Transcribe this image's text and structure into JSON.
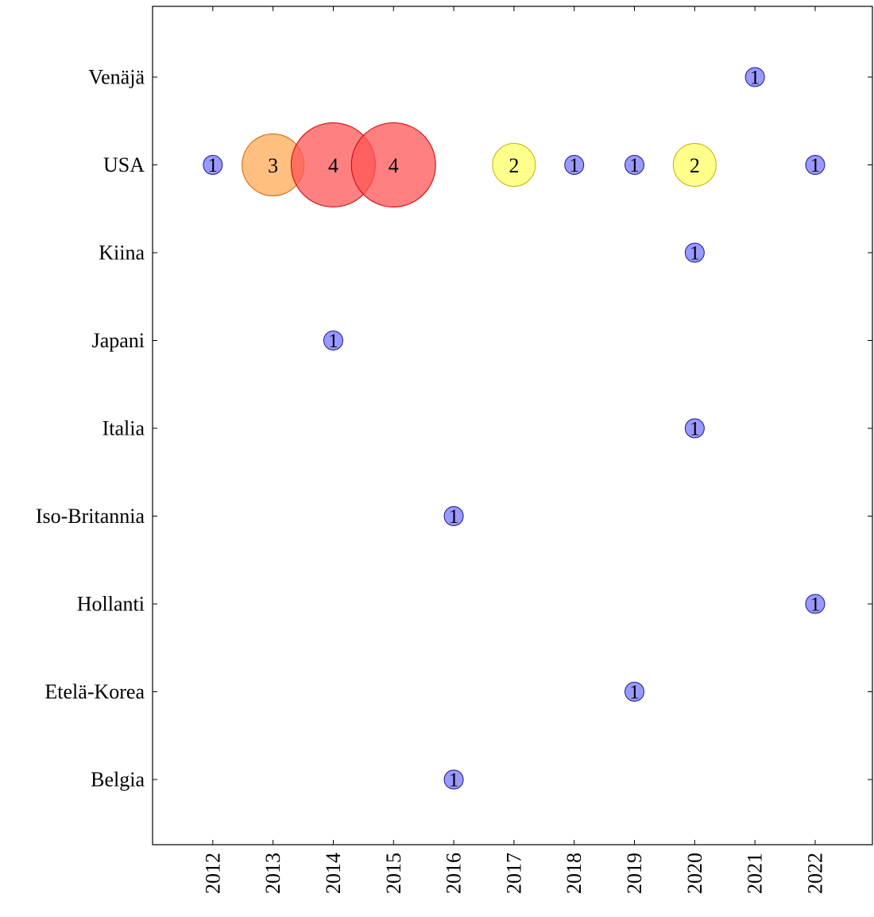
{
  "chart_data": {
    "type": "scatter",
    "title": "",
    "xlabel": "",
    "ylabel": "",
    "x_ticks": [
      2012,
      2013,
      2014,
      2015,
      2016,
      2017,
      2018,
      2019,
      2020,
      2021,
      2022
    ],
    "x_tick_labels": [
      "2012",
      "2013",
      "2014",
      "2015",
      "2016",
      "2017",
      "2018",
      "2019",
      "2020",
      "2021",
      "2022"
    ],
    "xlim": [
      2011.0,
      2022.95
    ],
    "categories": [
      "Belgia",
      "Etelä-Korea",
      "Hollanti",
      "Iso-Britannia",
      "Italia",
      "Japani",
      "Kiina",
      "USA",
      "Venäjä"
    ],
    "grid": false,
    "legend": "none",
    "color_by_count": {
      "1": "#7777ff",
      "2": "#ffff66",
      "3": "#ffaa55",
      "4": "#ff5555"
    },
    "outline_by_count": {
      "1": "#1a1a8c",
      "2": "#b8b800",
      "3": "#cc6600",
      "4": "#cc0000"
    },
    "points": [
      {
        "x": 2021,
        "y": "Venäjä",
        "count": 1,
        "label": "1"
      },
      {
        "x": 2012,
        "y": "USA",
        "count": 1,
        "label": "1"
      },
      {
        "x": 2013,
        "y": "USA",
        "count": 3,
        "label": "3"
      },
      {
        "x": 2014,
        "y": "USA",
        "count": 4,
        "label": "4"
      },
      {
        "x": 2015,
        "y": "USA",
        "count": 4,
        "label": "4"
      },
      {
        "x": 2017,
        "y": "USA",
        "count": 2,
        "label": "2"
      },
      {
        "x": 2018,
        "y": "USA",
        "count": 1,
        "label": "1"
      },
      {
        "x": 2019,
        "y": "USA",
        "count": 1,
        "label": "1"
      },
      {
        "x": 2020,
        "y": "USA",
        "count": 2,
        "label": "2"
      },
      {
        "x": 2022,
        "y": "USA",
        "count": 1,
        "label": "1"
      },
      {
        "x": 2020,
        "y": "Kiina",
        "count": 1,
        "label": "1"
      },
      {
        "x": 2014,
        "y": "Japani",
        "count": 1,
        "label": "1"
      },
      {
        "x": 2020,
        "y": "Italia",
        "count": 1,
        "label": "1"
      },
      {
        "x": 2016,
        "y": "Iso-Britannia",
        "count": 1,
        "label": "1"
      },
      {
        "x": 2022,
        "y": "Hollanti",
        "count": 1,
        "label": "1"
      },
      {
        "x": 2019,
        "y": "Etelä-Korea",
        "count": 1,
        "label": "1"
      },
      {
        "x": 2016,
        "y": "Belgia",
        "count": 1,
        "label": "1"
      }
    ]
  }
}
